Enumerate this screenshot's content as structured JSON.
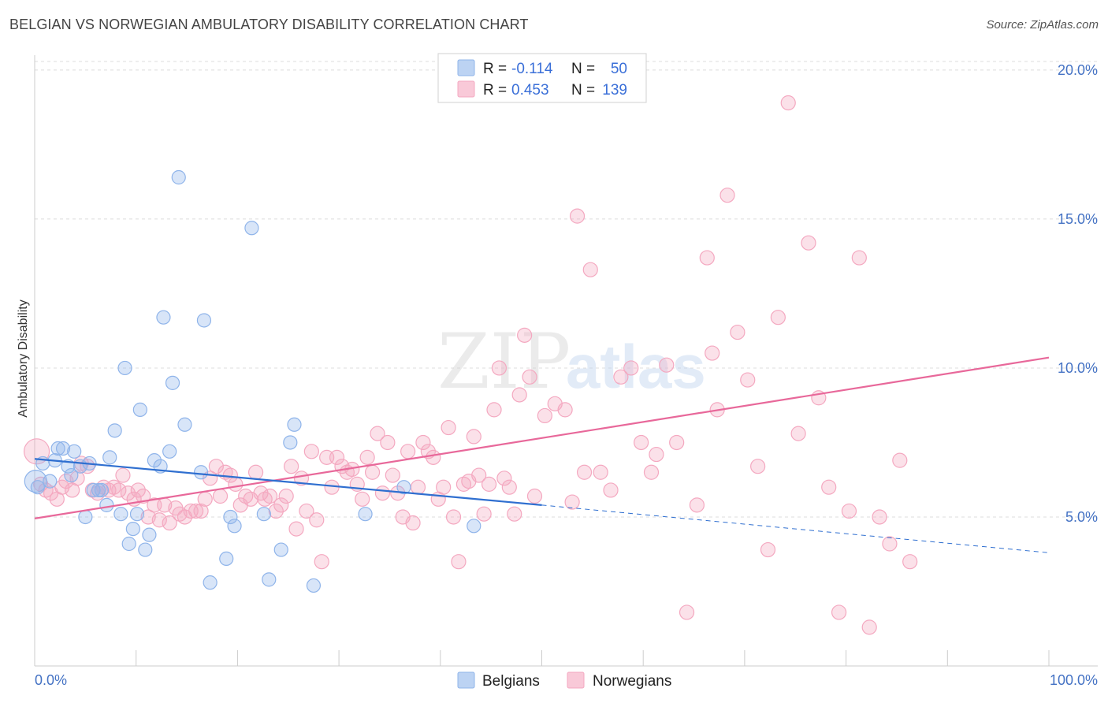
{
  "header": {
    "title": "BELGIAN VS NORWEGIAN AMBULATORY DISABILITY CORRELATION CHART",
    "source": "Source: ZipAtlas.com"
  },
  "watermark": {
    "zip": "ZIP",
    "atlas": "atlas"
  },
  "legend": {
    "r_label": "R =",
    "n_label": "N =",
    "belgians": {
      "r": "-0.114",
      "n": "50"
    },
    "norwegians": {
      "r": "0.453",
      "n": "139"
    }
  },
  "chart_data": {
    "type": "scatter",
    "title": "BELGIAN VS NORWEGIAN AMBULATORY DISABILITY CORRELATION CHART",
    "xlabel": "",
    "ylabel": "Ambulatory Disability",
    "xlim": [
      0,
      100
    ],
    "ylim": [
      0,
      20.5
    ],
    "x_tick_labels": [
      "0.0%",
      "100.0%"
    ],
    "y_ticks": [
      5,
      10,
      15,
      20
    ],
    "y_tick_labels": [
      "5.0%",
      "10.0%",
      "15.0%",
      "20.0%"
    ],
    "grid": true,
    "colors": {
      "belgians": "#8fb4ea",
      "norwegians": "#f4a8c0",
      "belgian_line": "#2f6fd0",
      "norwegian_line": "#e8689a"
    },
    "series": [
      {
        "name": "Belgians",
        "r": -0.114,
        "n": 50,
        "trend": {
          "x0": 0,
          "y0": 6.95,
          "x1": 50,
          "y1": 5.4,
          "dashed_to_x": 100,
          "dashed_to_y": 3.8
        },
        "points": [
          [
            0.1,
            6.2
          ],
          [
            0.3,
            6.0
          ],
          [
            0.8,
            6.8
          ],
          [
            1.5,
            6.2
          ],
          [
            2.0,
            6.9
          ],
          [
            2.3,
            7.3
          ],
          [
            2.8,
            7.3
          ],
          [
            3.3,
            6.7
          ],
          [
            3.6,
            6.4
          ],
          [
            3.9,
            7.2
          ],
          [
            4.5,
            6.7
          ],
          [
            5.0,
            5.0
          ],
          [
            5.4,
            6.8
          ],
          [
            5.8,
            5.9
          ],
          [
            6.3,
            5.9
          ],
          [
            6.6,
            5.9
          ],
          [
            7.1,
            5.4
          ],
          [
            7.4,
            7.0
          ],
          [
            7.9,
            7.9
          ],
          [
            8.5,
            5.1
          ],
          [
            8.9,
            10.0
          ],
          [
            9.3,
            4.1
          ],
          [
            9.7,
            4.6
          ],
          [
            10.1,
            5.1
          ],
          [
            10.4,
            8.6
          ],
          [
            10.9,
            3.9
          ],
          [
            11.3,
            4.4
          ],
          [
            11.8,
            6.9
          ],
          [
            12.4,
            6.7
          ],
          [
            12.7,
            11.7
          ],
          [
            13.3,
            7.2
          ],
          [
            13.6,
            9.5
          ],
          [
            14.2,
            16.4
          ],
          [
            14.8,
            8.1
          ],
          [
            16.4,
            6.5
          ],
          [
            16.7,
            11.6
          ],
          [
            17.3,
            2.8
          ],
          [
            18.9,
            3.6
          ],
          [
            19.3,
            5.0
          ],
          [
            19.7,
            4.7
          ],
          [
            21.4,
            14.7
          ],
          [
            22.6,
            5.1
          ],
          [
            23.1,
            2.9
          ],
          [
            24.3,
            3.9
          ],
          [
            25.2,
            7.5
          ],
          [
            25.6,
            8.1
          ],
          [
            27.5,
            2.7
          ],
          [
            32.6,
            5.1
          ],
          [
            36.4,
            6.0
          ],
          [
            43.3,
            4.7
          ]
        ]
      },
      {
        "name": "Norwegians",
        "r": 0.453,
        "n": 139,
        "trend": {
          "x0": 0,
          "y0": 4.95,
          "x1": 100,
          "y1": 10.35
        },
        "points": [
          [
            0.2,
            7.2
          ],
          [
            0.6,
            6.1
          ],
          [
            1.1,
            5.9
          ],
          [
            1.6,
            5.8
          ],
          [
            2.2,
            5.6
          ],
          [
            2.7,
            6.0
          ],
          [
            3.1,
            6.2
          ],
          [
            3.7,
            5.9
          ],
          [
            4.2,
            6.3
          ],
          [
            4.6,
            6.8
          ],
          [
            5.2,
            6.7
          ],
          [
            5.7,
            5.9
          ],
          [
            6.2,
            5.8
          ],
          [
            6.8,
            6.0
          ],
          [
            7.3,
            5.9
          ],
          [
            7.8,
            6.0
          ],
          [
            8.3,
            5.9
          ],
          [
            8.7,
            6.4
          ],
          [
            9.2,
            5.8
          ],
          [
            9.8,
            5.6
          ],
          [
            10.2,
            5.9
          ],
          [
            10.7,
            5.7
          ],
          [
            11.2,
            5.0
          ],
          [
            11.8,
            5.4
          ],
          [
            12.3,
            4.9
          ],
          [
            12.8,
            5.4
          ],
          [
            13.3,
            4.8
          ],
          [
            13.9,
            5.3
          ],
          [
            14.3,
            5.1
          ],
          [
            14.8,
            5.0
          ],
          [
            15.4,
            5.2
          ],
          [
            15.9,
            5.2
          ],
          [
            16.4,
            5.2
          ],
          [
            16.8,
            5.6
          ],
          [
            17.3,
            6.3
          ],
          [
            17.9,
            6.7
          ],
          [
            18.3,
            5.7
          ],
          [
            18.8,
            6.5
          ],
          [
            19.3,
            6.4
          ],
          [
            19.8,
            6.1
          ],
          [
            20.3,
            5.4
          ],
          [
            20.8,
            5.7
          ],
          [
            21.3,
            5.6
          ],
          [
            21.8,
            6.5
          ],
          [
            22.3,
            5.8
          ],
          [
            22.7,
            5.6
          ],
          [
            23.2,
            5.7
          ],
          [
            23.8,
            5.2
          ],
          [
            24.3,
            5.4
          ],
          [
            24.8,
            5.7
          ],
          [
            25.3,
            6.7
          ],
          [
            25.8,
            4.6
          ],
          [
            26.3,
            6.3
          ],
          [
            26.8,
            5.2
          ],
          [
            27.3,
            7.2
          ],
          [
            27.8,
            4.9
          ],
          [
            28.3,
            3.5
          ],
          [
            28.8,
            7.0
          ],
          [
            29.3,
            6.0
          ],
          [
            29.8,
            7.0
          ],
          [
            30.3,
            6.7
          ],
          [
            30.8,
            6.5
          ],
          [
            31.3,
            6.6
          ],
          [
            31.8,
            6.1
          ],
          [
            32.3,
            5.6
          ],
          [
            32.8,
            7.0
          ],
          [
            33.3,
            6.5
          ],
          [
            33.8,
            7.8
          ],
          [
            34.3,
            5.8
          ],
          [
            34.8,
            7.5
          ],
          [
            35.3,
            6.4
          ],
          [
            35.8,
            5.8
          ],
          [
            36.3,
            5.0
          ],
          [
            36.8,
            7.2
          ],
          [
            37.3,
            4.8
          ],
          [
            37.8,
            6.0
          ],
          [
            38.3,
            7.5
          ],
          [
            38.8,
            7.2
          ],
          [
            39.3,
            7.0
          ],
          [
            39.8,
            5.6
          ],
          [
            40.3,
            6.0
          ],
          [
            40.8,
            8.0
          ],
          [
            41.3,
            5.0
          ],
          [
            41.8,
            3.5
          ],
          [
            42.3,
            6.1
          ],
          [
            42.8,
            6.2
          ],
          [
            43.3,
            7.7
          ],
          [
            43.8,
            6.4
          ],
          [
            44.3,
            5.1
          ],
          [
            44.8,
            6.1
          ],
          [
            45.3,
            8.6
          ],
          [
            45.8,
            10.0
          ],
          [
            46.3,
            6.3
          ],
          [
            46.8,
            6.0
          ],
          [
            47.3,
            5.1
          ],
          [
            47.8,
            9.1
          ],
          [
            48.3,
            11.1
          ],
          [
            48.8,
            9.7
          ],
          [
            49.3,
            5.7
          ],
          [
            50.3,
            8.4
          ],
          [
            51.3,
            8.8
          ],
          [
            52.3,
            8.6
          ],
          [
            53.0,
            5.5
          ],
          [
            53.5,
            15.1
          ],
          [
            54.2,
            6.5
          ],
          [
            54.8,
            13.3
          ],
          [
            55.8,
            6.5
          ],
          [
            56.8,
            5.9
          ],
          [
            57.8,
            9.7
          ],
          [
            58.8,
            10.0
          ],
          [
            59.8,
            7.5
          ],
          [
            60.8,
            6.5
          ],
          [
            61.3,
            7.1
          ],
          [
            62.3,
            10.1
          ],
          [
            63.3,
            7.5
          ],
          [
            64.3,
            1.8
          ],
          [
            65.3,
            5.4
          ],
          [
            66.3,
            13.7
          ],
          [
            66.8,
            10.5
          ],
          [
            67.3,
            8.6
          ],
          [
            68.3,
            15.8
          ],
          [
            69.3,
            11.2
          ],
          [
            70.3,
            9.6
          ],
          [
            71.3,
            6.7
          ],
          [
            72.3,
            3.9
          ],
          [
            73.3,
            11.7
          ],
          [
            74.3,
            18.9
          ],
          [
            75.3,
            7.8
          ],
          [
            76.3,
            14.2
          ],
          [
            77.3,
            9.0
          ],
          [
            78.3,
            6.0
          ],
          [
            79.3,
            1.8
          ],
          [
            80.3,
            5.2
          ],
          [
            81.3,
            13.7
          ],
          [
            82.3,
            1.3
          ],
          [
            83.3,
            5.0
          ],
          [
            84.3,
            4.1
          ],
          [
            85.3,
            6.9
          ],
          [
            86.3,
            3.5
          ]
        ]
      }
    ],
    "legend_entries": [
      "Belgians",
      "Norwegians"
    ]
  }
}
